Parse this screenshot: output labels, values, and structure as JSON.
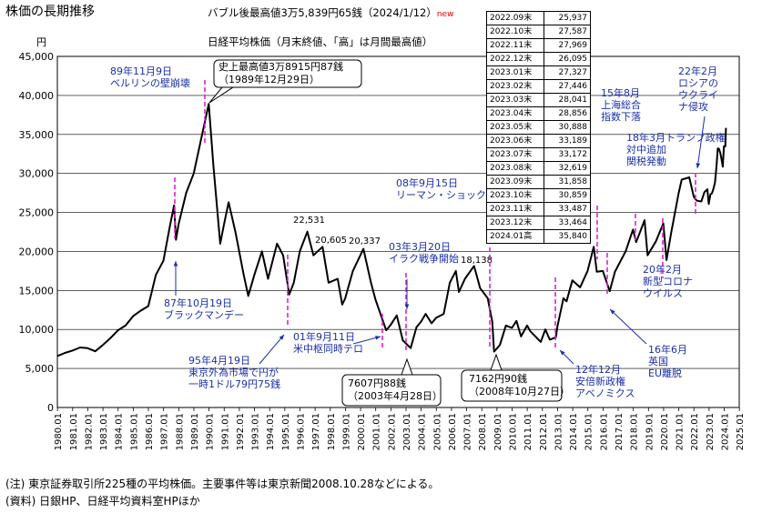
{
  "title": "株価の長期推移",
  "subtitle_high": "バブル後最高値3万5,839円65銭（2024/1/12）",
  "subtitle_new": "new",
  "subtitle_series": "日経平均株価（月末終値、「高」は月間最高値）",
  "y_unit": "円",
  "table": [
    {
      "label": "2022.09末",
      "value": "25,937"
    },
    {
      "label": "2022.10末",
      "value": "27,587"
    },
    {
      "label": "2022.11末",
      "value": "27,969"
    },
    {
      "label": "2022.12末",
      "value": "26,095"
    },
    {
      "label": "2023.01末",
      "value": "27,327"
    },
    {
      "label": "2023.02末",
      "value": "27,446"
    },
    {
      "label": "2023.03末",
      "value": "28,041"
    },
    {
      "label": "2023.04末",
      "value": "28,856"
    },
    {
      "label": "2023.05末",
      "value": "30,888"
    },
    {
      "label": "2023.06末",
      "value": "33,189"
    },
    {
      "label": "2023.07末",
      "value": "33,172"
    },
    {
      "label": "2023.08末",
      "value": "32,619"
    },
    {
      "label": "2023.09末",
      "value": "31,858"
    },
    {
      "label": "2023.10末",
      "value": "30,859"
    },
    {
      "label": "2023.11末",
      "value": "33,487"
    },
    {
      "label": "2023.12末",
      "value": "33,464"
    },
    {
      "label": "2024.01高",
      "value": "35,840"
    }
  ],
  "footnote1": "(注) 東京証券取引所225種の平均株価。主要事件等は東京新聞2008.10.28などによる。",
  "footnote2": "(資料) 日銀HP、日経平均資料室HPほか",
  "colors": {
    "line": "#000000",
    "event": "#e020d0",
    "annotation": "#1a2fa8",
    "grid": "#000000"
  },
  "chart_data": {
    "type": "line",
    "ylim": [
      0,
      45000
    ],
    "yticks": [
      0,
      5000,
      10000,
      15000,
      20000,
      25000,
      30000,
      35000,
      40000,
      45000
    ],
    "ytick_labels": [
      "0",
      "5,000",
      "10,000",
      "15,000",
      "20,000",
      "25,000",
      "30,000",
      "35,000",
      "40,000",
      "45,000"
    ],
    "xlim": [
      1980.0,
      2025.0
    ],
    "xtick_labels": [
      "1980.01",
      "1981.01",
      "1982.01",
      "1983.01",
      "1984.01",
      "1985.01",
      "1986.01",
      "1987.01",
      "1988.01",
      "1989.01",
      "1990.01",
      "1991.01",
      "1992.01",
      "1993.01",
      "1994.01",
      "1995.01",
      "1996.01",
      "1997.01",
      "1998.01",
      "1999.01",
      "2000.01",
      "2001.01",
      "2002.01",
      "2003.01",
      "2004.01",
      "2005.01",
      "2006.01",
      "2007.01",
      "2008.01",
      "2009.01",
      "2010.01",
      "2011.01",
      "2012.01",
      "2013.01",
      "2014.01",
      "2015.01",
      "2016.01",
      "2017.01",
      "2018.01",
      "2019.01",
      "2020.01",
      "2021.01",
      "2022.01",
      "2023.01",
      "2024.01",
      "2025.01"
    ],
    "grid": "horizontal",
    "series": [
      {
        "points": [
          [
            1980.0,
            6600
          ],
          [
            1980.5,
            7000
          ],
          [
            1981.0,
            7300
          ],
          [
            1981.5,
            7700
          ],
          [
            1982.0,
            7600
          ],
          [
            1982.5,
            7200
          ],
          [
            1983.0,
            8000
          ],
          [
            1983.5,
            8900
          ],
          [
            1984.0,
            9900
          ],
          [
            1984.5,
            10500
          ],
          [
            1985.0,
            11700
          ],
          [
            1985.5,
            12400
          ],
          [
            1986.0,
            13000
          ],
          [
            1986.5,
            17000
          ],
          [
            1987.0,
            18800
          ],
          [
            1987.4,
            23000
          ],
          [
            1987.7,
            25900
          ],
          [
            1987.83,
            21500
          ],
          [
            1988.0,
            23500
          ],
          [
            1988.5,
            27500
          ],
          [
            1989.0,
            30000
          ],
          [
            1989.5,
            34500
          ],
          [
            1989.99,
            38916
          ],
          [
            1990.3,
            31000
          ],
          [
            1990.75,
            21000
          ],
          [
            1991.0,
            23500
          ],
          [
            1991.3,
            26300
          ],
          [
            1991.75,
            22500
          ],
          [
            1992.3,
            17000
          ],
          [
            1992.6,
            14300
          ],
          [
            1993.0,
            17000
          ],
          [
            1993.5,
            20000
          ],
          [
            1993.9,
            16500
          ],
          [
            1994.5,
            21000
          ],
          [
            1994.9,
            19500
          ],
          [
            1995.3,
            14485
          ],
          [
            1995.6,
            16000
          ],
          [
            1996.0,
            20000
          ],
          [
            1996.5,
            22531
          ],
          [
            1996.9,
            19500
          ],
          [
            1997.5,
            20605
          ],
          [
            1997.9,
            16000
          ],
          [
            1998.5,
            16500
          ],
          [
            1998.8,
            13200
          ],
          [
            1999.0,
            14000
          ],
          [
            1999.5,
            17500
          ],
          [
            2000.2,
            20337
          ],
          [
            2000.7,
            16000
          ],
          [
            2001.0,
            13800
          ],
          [
            2001.7,
            9900
          ],
          [
            2002.0,
            10600
          ],
          [
            2002.4,
            11800
          ],
          [
            2002.8,
            8600
          ],
          [
            2003.32,
            7607
          ],
          [
            2003.7,
            10300
          ],
          [
            2004.0,
            11000
          ],
          [
            2004.3,
            12000
          ],
          [
            2004.7,
            10800
          ],
          [
            2005.0,
            11500
          ],
          [
            2005.5,
            12000
          ],
          [
            2005.9,
            16000
          ],
          [
            2006.3,
            17500
          ],
          [
            2006.5,
            14800
          ],
          [
            2006.9,
            16500
          ],
          [
            2007.5,
            18138
          ],
          [
            2007.9,
            15300
          ],
          [
            2008.4,
            14000
          ],
          [
            2008.7,
            11000
          ],
          [
            2008.82,
            7162
          ],
          [
            2009.2,
            8000
          ],
          [
            2009.6,
            10500
          ],
          [
            2010.0,
            10200
          ],
          [
            2010.3,
            11100
          ],
          [
            2010.6,
            9100
          ],
          [
            2011.0,
            10500
          ],
          [
            2011.2,
            9800
          ],
          [
            2011.9,
            8400
          ],
          [
            2012.2,
            10000
          ],
          [
            2012.5,
            8700
          ],
          [
            2012.9,
            9000
          ],
          [
            2013.0,
            10400
          ],
          [
            2013.4,
            14000
          ],
          [
            2013.6,
            13600
          ],
          [
            2013.99,
            16300
          ],
          [
            2014.5,
            15400
          ],
          [
            2014.99,
            17500
          ],
          [
            2015.4,
            20600
          ],
          [
            2015.6,
            17400
          ],
          [
            2016.0,
            17500
          ],
          [
            2016.45,
            14900
          ],
          [
            2016.8,
            17400
          ],
          [
            2017.5,
            20000
          ],
          [
            2017.99,
            22800
          ],
          [
            2018.2,
            21200
          ],
          [
            2018.75,
            24000
          ],
          [
            2018.95,
            19500
          ],
          [
            2019.5,
            21300
          ],
          [
            2019.99,
            23600
          ],
          [
            2020.2,
            18900
          ],
          [
            2020.5,
            22300
          ],
          [
            2020.99,
            27400
          ],
          [
            2021.2,
            29200
          ],
          [
            2021.7,
            29500
          ],
          [
            2022.0,
            27000
          ],
          [
            2022.2,
            26500
          ],
          [
            2022.5,
            26400
          ],
          [
            2022.7,
            27600
          ],
          [
            2022.9,
            27969
          ],
          [
            2022.99,
            26095
          ],
          [
            2023.1,
            27327
          ],
          [
            2023.2,
            27446
          ],
          [
            2023.3,
            28041
          ],
          [
            2023.4,
            28856
          ],
          [
            2023.5,
            30888
          ],
          [
            2023.58,
            33189
          ],
          [
            2023.66,
            33172
          ],
          [
            2023.75,
            32619
          ],
          [
            2023.83,
            31858
          ],
          [
            2023.91,
            30859
          ],
          [
            2023.99,
            33487
          ],
          [
            2024.08,
            33464
          ],
          [
            2024.12,
            35840
          ]
        ]
      }
    ],
    "annotations": [
      {
        "text": "89年11月9日\nベルリンの壁崩壊",
        "x": 1989.86,
        "event": true
      },
      {
        "text": "史上最高値3万8915円87銭\n（1989年12月29日）",
        "x": 1989.99,
        "y": 38916,
        "boxed": true
      },
      {
        "text": "87年10月19日\nブラックマンデー",
        "x": 1987.8,
        "event": true
      },
      {
        "text": "95年4月19日\n東京外為市場で円が\n一時1ドル79円75銭",
        "x": 1995.3,
        "event": true
      },
      {
        "text": "22,531",
        "x": 1996.5,
        "y": 22531
      },
      {
        "text": "20,605",
        "x": 1997.5,
        "y": 20605
      },
      {
        "text": "20,337",
        "x": 2000.2,
        "y": 20337
      },
      {
        "text": "01年9月11日\n米中枢同時テロ",
        "x": 2001.7,
        "event": true
      },
      {
        "text": "03年3月20日\nイラク戦争開始",
        "x": 2003.22,
        "event": true
      },
      {
        "text": "7607円88銭\n（2003年4月28日）",
        "x": 2003.32,
        "y": 7607,
        "boxed": true
      },
      {
        "text": "18,138",
        "x": 2007.5,
        "y": 18138
      },
      {
        "text": "08年9月15日\nリーマン・ショック",
        "x": 2008.71,
        "event": true
      },
      {
        "text": "7162円90銭\n（2008年10月27日）",
        "x": 2008.82,
        "y": 7162,
        "boxed": true
      },
      {
        "text": "12年12月\n安倍新政権\nアベノミクス",
        "x": 2012.95,
        "event": true
      },
      {
        "text": "15年8月\n上海総合\n指数下落",
        "x": 2015.6,
        "event": true
      },
      {
        "text": "16年6月\n英国\nEU離脱",
        "x": 2016.45,
        "event": true
      },
      {
        "text": "18年3月トランプ政権\n対中追加\n関税発動",
        "x": 2018.2,
        "event": true
      },
      {
        "text": "20年2月\n新型コロナ\nウイルス",
        "x": 2020.15,
        "event": true
      },
      {
        "text": "22年2月\nロシアの\nウクライ\nナ侵攻",
        "x": 2022.15,
        "event": true
      }
    ]
  }
}
